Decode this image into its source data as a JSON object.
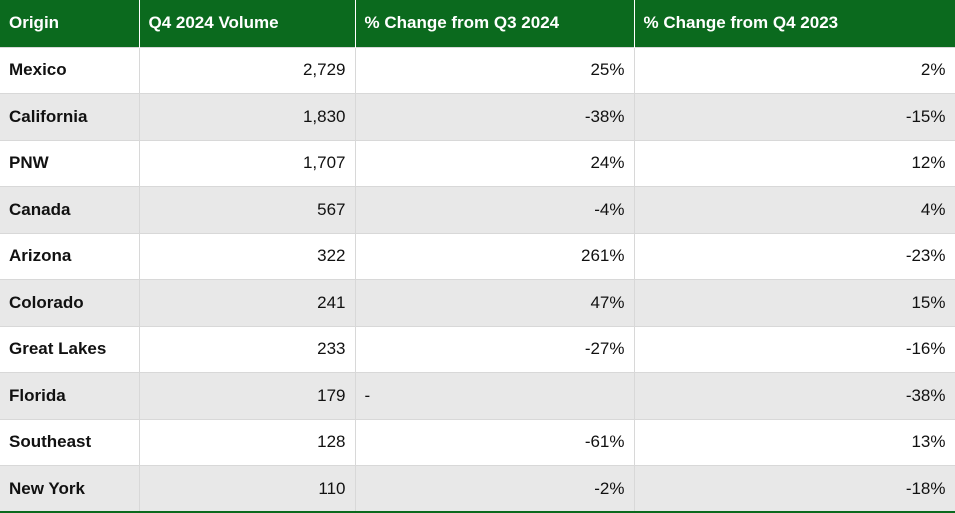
{
  "table": {
    "header": [
      "Origin",
      "Q4 2024 Volume",
      "% Change from Q3 2024",
      "% Change from Q4 2023"
    ],
    "rows": [
      [
        "Mexico",
        "2,729",
        "25%",
        "2%"
      ],
      [
        "California",
        "1,830",
        "-38%",
        "-15%"
      ],
      [
        "PNW",
        "1,707",
        "24%",
        "12%"
      ],
      [
        "Canada",
        "567",
        "-4%",
        "4%"
      ],
      [
        "Arizona",
        "322",
        "261%",
        "-23%"
      ],
      [
        "Colorado",
        "241",
        "47%",
        "15%"
      ],
      [
        "Great Lakes",
        "233",
        "-27%",
        "-16%"
      ],
      [
        "Florida",
        "179",
        "-",
        "-38%"
      ],
      [
        "Southeast",
        "128",
        "-61%",
        "13%"
      ],
      [
        "New York",
        "110",
        "-2%",
        "-18%"
      ]
    ]
  }
}
